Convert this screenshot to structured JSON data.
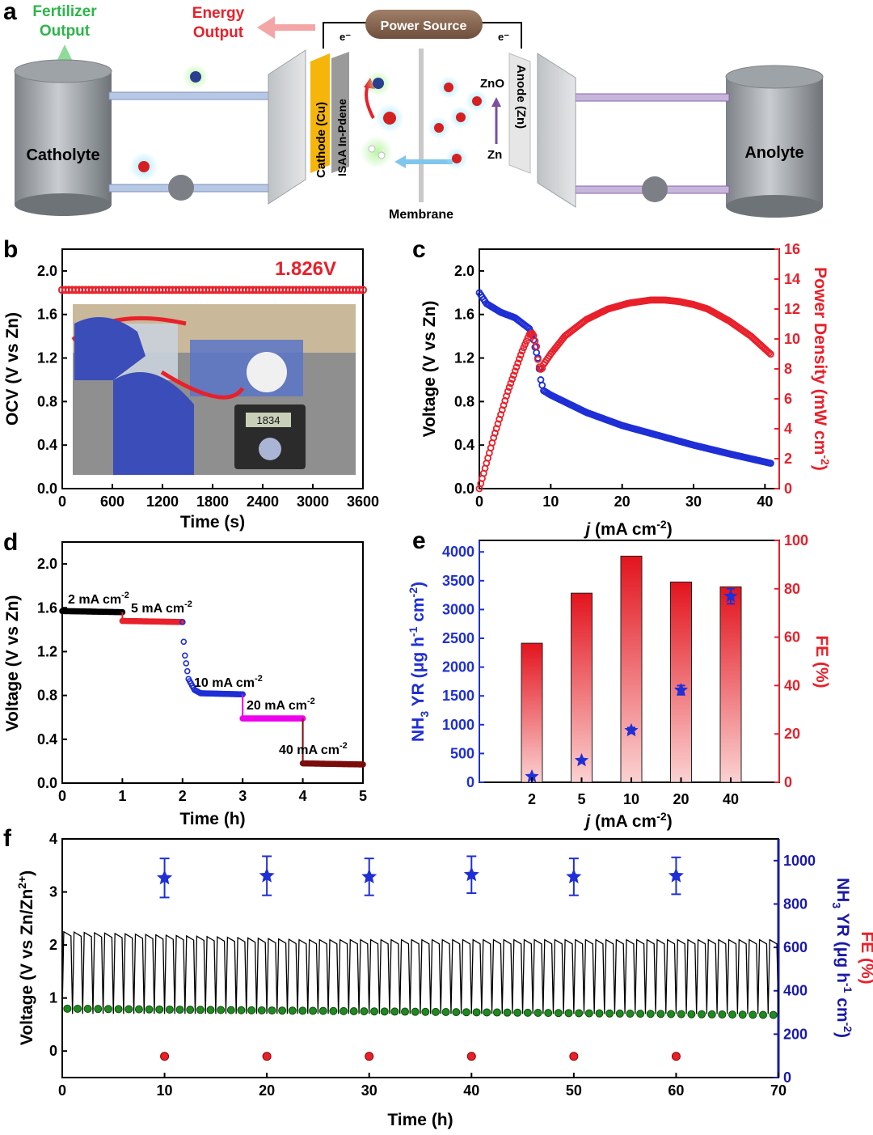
{
  "panels": {
    "a": "a",
    "b": "b",
    "c": "c",
    "d": "d",
    "e": "e",
    "f": "f"
  },
  "schematic": {
    "fertilizer_output": [
      "Fertilizer",
      "Output"
    ],
    "energy_output": [
      "Energy",
      "Output"
    ],
    "power_source": "Power Source",
    "electron_left": "e⁻",
    "electron_right": "e⁻",
    "catholyte": "Catholyte",
    "anolyte": "Anolyte",
    "cathode": "Cathode (Cu)",
    "catalyst": "ISAA In-Pdene",
    "anode": "Anode (Zn)",
    "zno": "ZnO",
    "zn": "Zn",
    "membrane": "Membrane",
    "colors": {
      "fertilizer": "#2db54a",
      "energy": "#e8202a",
      "power_source": "#8b6a55",
      "cathode": "#f5b50a",
      "anode_line": "#7b4fa0"
    }
  },
  "chart_data": [
    {
      "id": "b",
      "type": "scatter",
      "xlabel": "Time (s)",
      "ylabel": "OCV (V vs Zn)",
      "xlim": [
        0,
        3600
      ],
      "ylim": [
        0,
        2.2
      ],
      "xticks": [
        "0",
        "600",
        "1200",
        "1800",
        "2400",
        "3000",
        "3600"
      ],
      "yticks": [
        "0.0",
        "0.4",
        "0.8",
        "1.2",
        "1.6",
        "2.0"
      ],
      "series": [
        {
          "values_constant": 1.826,
          "x_range": [
            0,
            3600
          ],
          "color": "#e8202a"
        }
      ],
      "annotation": "1.826V",
      "inset": "photo of the assembled cell connected to a multimeter reading 1.834"
    },
    {
      "id": "c",
      "type": "scatter",
      "xlabel": "j (mA cm⁻²)",
      "ylabel_left": "Voltage (V vs Zn)",
      "ylabel_right": "Power Density (mW cm⁻²)",
      "xlim": [
        0,
        42
      ],
      "ylim_left": [
        0,
        2.2
      ],
      "ylim_right": [
        0,
        16
      ],
      "xticks": [
        "0",
        "10",
        "20",
        "30",
        "40"
      ],
      "yticks_left": [
        "0.0",
        "0.4",
        "0.8",
        "1.2",
        "1.6",
        "2.0"
      ],
      "yticks_right": [
        "0",
        "2",
        "4",
        "6",
        "8",
        "10",
        "12",
        "14",
        "16"
      ],
      "series": [
        {
          "axis": "left",
          "color": "#1f2fd6",
          "x": [
            0,
            1,
            3,
            5,
            7,
            7.5,
            7.8,
            8.2,
            8.6,
            9,
            10,
            15,
            20,
            25,
            30,
            35,
            41
          ],
          "y": [
            1.8,
            1.7,
            1.62,
            1.57,
            1.47,
            1.4,
            1.3,
            1.2,
            1.0,
            0.9,
            0.86,
            0.7,
            0.58,
            0.49,
            0.4,
            0.32,
            0.23
          ]
        },
        {
          "axis": "right",
          "color": "#e8202a",
          "x": [
            0,
            2,
            4,
            6,
            7,
            7.5,
            8,
            8.3,
            8.7,
            9,
            10,
            12,
            15,
            18,
            21,
            24,
            26,
            28,
            30,
            32,
            35,
            38,
            41
          ],
          "y": [
            0,
            3.4,
            6.5,
            9.2,
            10.3,
            10.4,
            9.5,
            8.2,
            7.9,
            8.3,
            9.0,
            10.2,
            11.3,
            12.0,
            12.4,
            12.6,
            12.6,
            12.5,
            12.3,
            12.0,
            11.2,
            10.2,
            8.9
          ]
        }
      ]
    },
    {
      "id": "d",
      "type": "line",
      "xlabel": "Time (h)",
      "ylabel": "Voltage (V vs Zn)",
      "xlim": [
        0,
        5
      ],
      "ylim": [
        0,
        2.2
      ],
      "xticks": [
        "0",
        "1",
        "2",
        "3",
        "4",
        "5"
      ],
      "yticks": [
        "0.0",
        "0.4",
        "0.8",
        "1.2",
        "1.6",
        "2.0"
      ],
      "series": [
        {
          "label": "2 mA cm⁻²",
          "color": "#000000",
          "x": [
            0,
            1
          ],
          "y": [
            1.57,
            1.56
          ]
        },
        {
          "label": "5 mA cm⁻²",
          "color": "#e8202a",
          "x": [
            1,
            2
          ],
          "y": [
            1.48,
            1.47
          ]
        },
        {
          "label": "10 mA cm⁻²",
          "color": "#1f2fd6",
          "x": [
            2,
            2.03,
            2.1,
            2.2,
            2.3,
            3
          ],
          "y": [
            1.47,
            1.2,
            0.95,
            0.85,
            0.82,
            0.81
          ]
        },
        {
          "label": "20 mA cm⁻²",
          "color": "#ee00ee",
          "x": [
            3,
            4
          ],
          "y": [
            0.59,
            0.59
          ]
        },
        {
          "label": "40 mA cm⁻²",
          "color": "#7b0c0c",
          "x": [
            4,
            5
          ],
          "y": [
            0.18,
            0.17
          ]
        }
      ]
    },
    {
      "id": "e",
      "type": "bar",
      "xlabel": "j (mA cm⁻²)",
      "ylabel_left": "NH3 YR (μg h⁻¹ cm⁻²)",
      "ylabel_right": "FE (%)",
      "categories": [
        "2",
        "5",
        "10",
        "20",
        "40"
      ],
      "ylim_left": [
        0,
        4200
      ],
      "ylim_right": [
        0,
        100
      ],
      "yticks_left": [
        "0",
        "500",
        "1000",
        "1500",
        "2000",
        "2500",
        "3000",
        "3500",
        "4000"
      ],
      "yticks_right": [
        "0",
        "20",
        "40",
        "60",
        "80",
        "100"
      ],
      "series": [
        {
          "name": "FE",
          "axis": "right",
          "color": "#e8202a",
          "values": [
            57.5,
            78.2,
            93.5,
            82.8,
            80.8
          ]
        },
        {
          "name": "NH3 YR",
          "axis": "left",
          "color": "#1f2fd6",
          "values": [
            100,
            380,
            900,
            1600,
            3230
          ],
          "errors": [
            0,
            0,
            50,
            80,
            130
          ]
        }
      ]
    },
    {
      "id": "f",
      "type": "line",
      "xlabel": "Time (h)",
      "ylabel_left": "Voltage (V vs Zn/Zn²⁺)",
      "ylabel_right_a": "NH3 YR (μg h⁻¹ cm⁻²)",
      "ylabel_right_b": "FE (%)",
      "xlim": [
        0,
        70
      ],
      "ylim_left": [
        -0.5,
        4
      ],
      "ylim_right": [
        0,
        1100
      ],
      "xticks": [
        "0",
        "10",
        "20",
        "30",
        "40",
        "50",
        "60",
        "70"
      ],
      "yticks_left": [
        "0",
        "1",
        "2",
        "3",
        "4"
      ],
      "yticks_right": [
        "0",
        "200",
        "400",
        "600",
        "800",
        "1000"
      ],
      "cycling": {
        "cycles": 70,
        "charge_voltage_start": 2.25,
        "charge_voltage_end": 2.1,
        "discharge_voltage": 0.75,
        "color": "#000000"
      },
      "series": [
        {
          "name": "NH3 YR",
          "axis": "right",
          "color": "#1f2fd6",
          "x": [
            10,
            20,
            30,
            40,
            50,
            60
          ],
          "y": [
            920,
            930,
            925,
            935,
            925,
            930
          ],
          "errors": [
            90,
            90,
            85,
            85,
            85,
            85
          ]
        },
        {
          "name": "FE",
          "axis": "left",
          "color": "#e8202a",
          "x": [
            10,
            20,
            30,
            40,
            50,
            60
          ],
          "y": [
            -0.1,
            -0.1,
            -0.1,
            -0.1,
            -0.1,
            -0.1
          ]
        },
        {
          "name": "discharge",
          "axis": "left",
          "color": "#1f8a1f",
          "x_range": [
            0,
            70
          ],
          "y_start": 0.8,
          "y_end": 0.68
        }
      ]
    }
  ],
  "annotations": {
    "b_value": "1.826V",
    "d_labels": [
      {
        "text": "2 mA cm",
        "sup": "-2"
      },
      {
        "text": "5 mA cm",
        "sup": "-2"
      },
      {
        "text": "10 mA cm",
        "sup": "-2"
      },
      {
        "text": "20 mA cm",
        "sup": "-2"
      },
      {
        "text": "40 mA cm",
        "sup": "-2"
      }
    ]
  },
  "axis_text": {
    "b_x": "Time (s)",
    "b_y": "OCV (V vs Zn)",
    "c_x_j": "j",
    "c_x_rest": " (mA cm",
    "c_x_sup": "-2",
    "c_x_end": ")",
    "c_yl": "Voltage (V vs Zn)",
    "c_yr": "Power Density (mW cm",
    "c_yr_sup": "-2",
    "c_yr_end": ")",
    "d_x": "Time (h)",
    "d_y": "Voltage (V vs Zn)",
    "e_x_j": "j",
    "e_x_rest": " (mA cm",
    "e_x_sup": "-2",
    "e_x_end": ")",
    "e_yl_a": "NH",
    "e_yl_sub": "3",
    "e_yl_b": " YR (μg h",
    "e_yl_sup1": "-1",
    "e_yl_c": " cm",
    "e_yl_sup2": "-2",
    "e_yl_d": ")",
    "e_yr": "FE (%)",
    "f_x": "Time (h)",
    "f_yl": "Voltage (V vs Zn/Zn",
    "f_yl_sup": "2+",
    "f_yl_end": ")",
    "f_yr_a": "NH",
    "f_yr_sub": "3",
    "f_yr_b": " YR (μg h",
    "f_yr_sup1": "-1",
    "f_yr_c": " cm",
    "f_yr_sup2": "-2",
    "f_yr_d": ")",
    "f_yr2": "FE (%)"
  },
  "photo": {
    "multimeter_reading": "1834"
  }
}
